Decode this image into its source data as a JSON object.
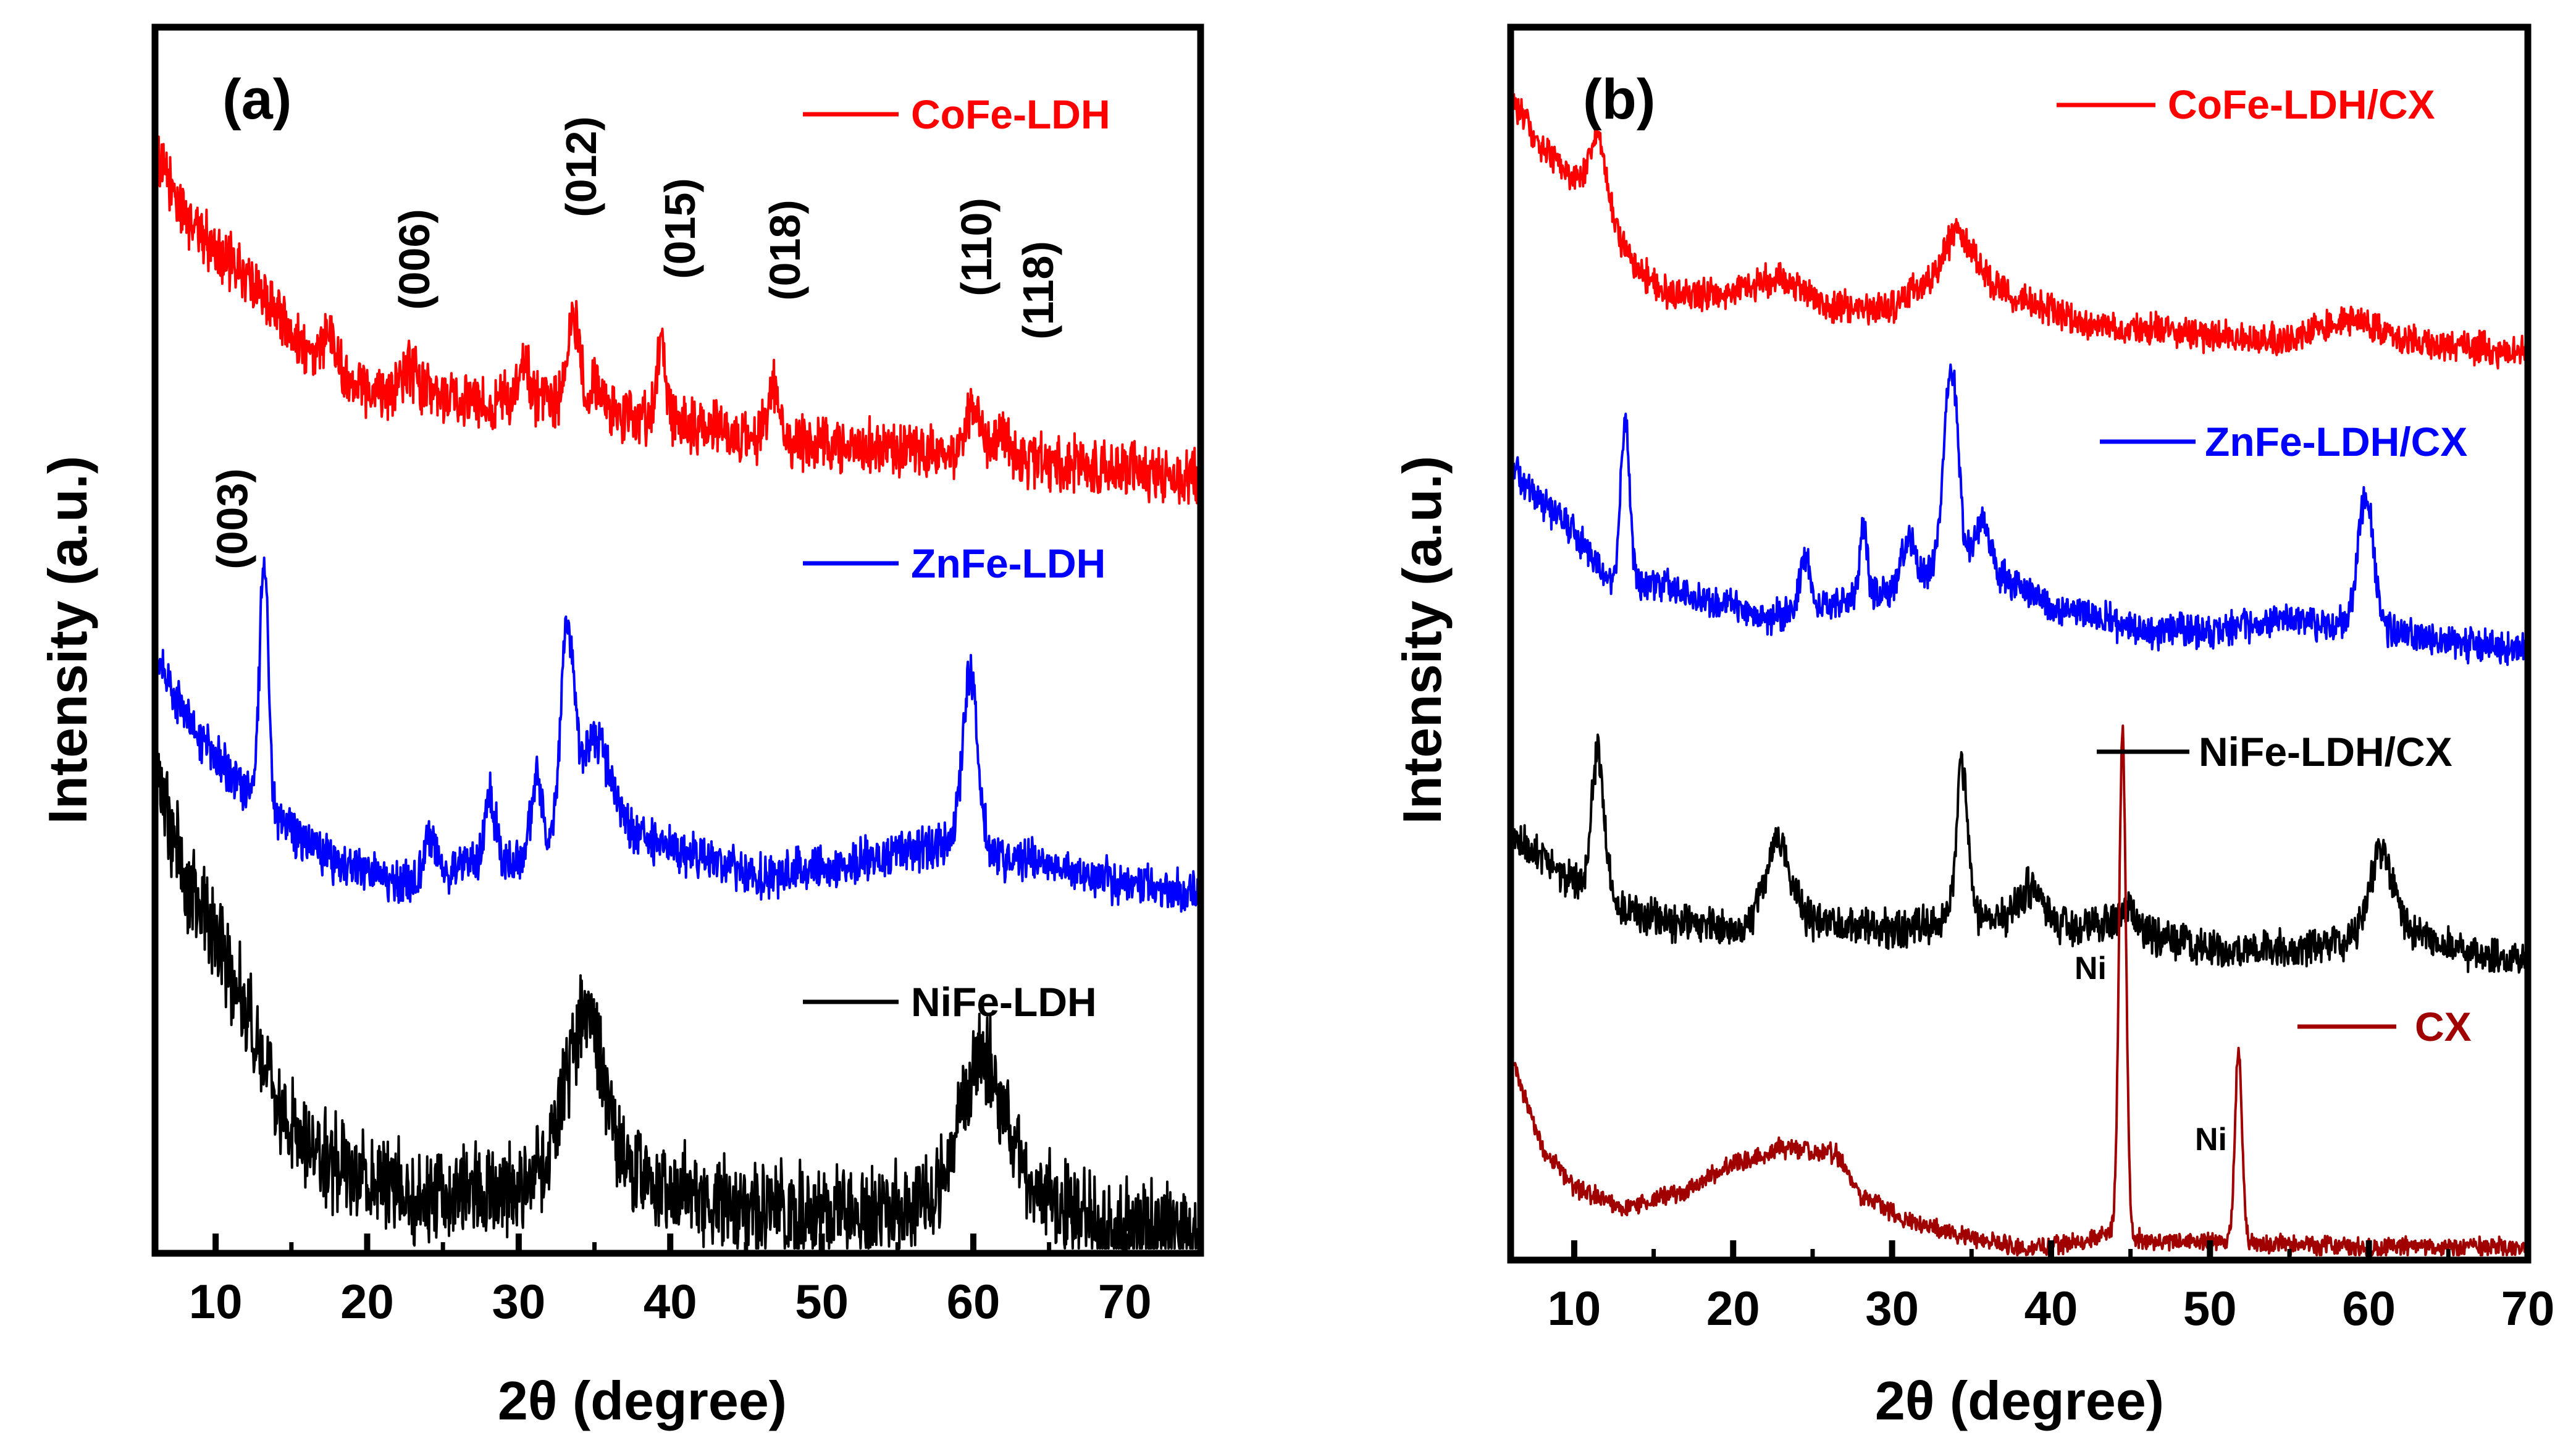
{
  "chart_data": [
    {
      "type": "line",
      "panel_label": "(a)",
      "xlabel": "2θ (degree)",
      "ylabel": "Intensity (a.u.)",
      "xlim": [
        6,
        75
      ],
      "xticks": [
        10,
        20,
        30,
        40,
        50,
        60,
        70
      ],
      "xtick_labels": [
        "10",
        "20",
        "30",
        "40",
        "50",
        "60",
        "70"
      ],
      "y_ticks_shown": false,
      "series": [
        {
          "name": "CoFe-LDH",
          "color": "#ff0000",
          "noise": 0.07,
          "background": [
            [
              6.2,
              0.95
            ],
            [
              8,
              0.8
            ],
            [
              10,
              0.7
            ],
            [
              12,
              0.62
            ],
            [
              14,
              0.52
            ],
            [
              16,
              0.4
            ],
            [
              20,
              0.3
            ],
            [
              25,
              0.27
            ],
            [
              30,
              0.26
            ],
            [
              40,
              0.2
            ],
            [
              48,
              0.14
            ],
            [
              60,
              0.1
            ],
            [
              75,
              0.04
            ]
          ],
          "peaks": [
            [
              17.5,
              0.12,
              0.35
            ],
            [
              22.8,
              0.07,
              0.6
            ],
            [
              30.4,
              0.1,
              0.35
            ],
            [
              33.6,
              0.25,
              0.45
            ],
            [
              35.2,
              0.08,
              0.4
            ],
            [
              39.4,
              0.22,
              0.3
            ],
            [
              46.8,
              0.14,
              0.4
            ],
            [
              60.0,
              0.15,
              0.5
            ],
            [
              61.8,
              0.08,
              0.5
            ]
          ]
        },
        {
          "name": "ZnFe-LDH",
          "color": "#0000ff",
          "noise": 0.06,
          "background": [
            [
              6.2,
              0.75
            ],
            [
              8,
              0.58
            ],
            [
              10,
              0.45
            ],
            [
              12,
              0.35
            ],
            [
              14,
              0.25
            ],
            [
              18,
              0.12
            ],
            [
              22,
              0.06
            ],
            [
              26,
              0.1
            ],
            [
              32,
              0.15
            ],
            [
              36,
              0.25
            ],
            [
              40,
              0.17
            ],
            [
              46,
              0.08
            ],
            [
              52,
              0.12
            ],
            [
              57,
              0.18
            ],
            [
              63,
              0.13
            ],
            [
              70,
              0.06
            ],
            [
              75,
              0.02
            ]
          ],
          "peaks": [
            [
              13.2,
              0.8,
              0.28
            ],
            [
              24.2,
              0.12,
              0.4
            ],
            [
              28.1,
              0.22,
              0.35
            ],
            [
              31.2,
              0.25,
              0.35
            ],
            [
              33.2,
              0.65,
              0.45
            ],
            [
              35.0,
              0.28,
              0.9
            ],
            [
              59.8,
              0.55,
              0.5
            ]
          ]
        },
        {
          "name": "NiFe-LDH",
          "color": "#000000",
          "noise": 0.09,
          "background": [
            [
              6.2,
              1.0
            ],
            [
              8,
              0.78
            ],
            [
              10,
              0.65
            ],
            [
              12,
              0.5
            ],
            [
              14,
              0.3
            ],
            [
              16,
              0.2
            ],
            [
              20,
              0.12
            ],
            [
              25,
              0.09
            ],
            [
              30,
              0.1
            ],
            [
              35,
              0.18
            ],
            [
              40,
              0.1
            ],
            [
              45,
              0.06
            ],
            [
              50,
              0.05
            ],
            [
              55,
              0.05
            ],
            [
              58,
              0.08
            ],
            [
              62,
              0.12
            ],
            [
              66,
              0.05
            ],
            [
              75,
              0.0
            ]
          ],
          "peaks": [
            [
              34.3,
              0.3,
              1.2
            ],
            [
              60.5,
              0.28,
              1.4
            ]
          ]
        }
      ],
      "annotations": [
        {
          "text": "(003)",
          "x": 13.4
        },
        {
          "text": "(006)",
          "x": 23.6
        },
        {
          "text": "(012)",
          "x": 33.8
        },
        {
          "text": "(015)",
          "x": 40.0
        },
        {
          "text": "(018)",
          "x": 47.2
        },
        {
          "text": "(110)",
          "x": 59.8
        },
        {
          "text": "(118)",
          "x": 62.8
        }
      ]
    },
    {
      "type": "line",
      "panel_label": "(b)",
      "xlabel": "2θ (degree)",
      "ylabel": "Intensity (a.u.)",
      "xlim": [
        6,
        70
      ],
      "xticks": [
        10,
        20,
        30,
        40,
        50,
        60,
        70
      ],
      "xtick_labels": [
        "10",
        "20",
        "30",
        "40",
        "50",
        "60",
        "70"
      ],
      "y_ticks_shown": false,
      "series": [
        {
          "name": "CoFe-LDH/CX",
          "color": "#ff0000",
          "noise": 0.05,
          "background": [
            [
              6.2,
              0.95
            ],
            [
              8,
              0.78
            ],
            [
              10,
              0.68
            ],
            [
              12,
              0.52
            ],
            [
              14,
              0.35
            ],
            [
              16,
              0.26
            ],
            [
              20,
              0.27
            ],
            [
              23,
              0.33
            ],
            [
              26,
              0.22
            ],
            [
              30,
              0.22
            ],
            [
              34,
              0.38
            ],
            [
              37,
              0.28
            ],
            [
              42,
              0.15
            ],
            [
              50,
              0.12
            ],
            [
              55,
              0.1
            ],
            [
              59,
              0.18
            ],
            [
              62,
              0.1
            ],
            [
              70,
              0.05
            ]
          ],
          "peaks": [
            [
              11.5,
              0.25,
              0.6
            ],
            [
              34.2,
              0.12,
              0.8
            ]
          ]
        },
        {
          "name": "ZnFe-LDH/CX",
          "color": "#0000ff",
          "noise": 0.055,
          "background": [
            [
              6.2,
              0.7
            ],
            [
              8,
              0.58
            ],
            [
              10,
              0.48
            ],
            [
              12,
              0.3
            ],
            [
              15,
              0.28
            ],
            [
              18,
              0.22
            ],
            [
              22,
              0.15
            ],
            [
              26,
              0.2
            ],
            [
              30,
              0.25
            ],
            [
              34,
              0.35
            ],
            [
              37,
              0.3
            ],
            [
              40,
              0.2
            ],
            [
              46,
              0.1
            ],
            [
              50,
              0.1
            ],
            [
              55,
              0.15
            ],
            [
              58,
              0.12
            ],
            [
              63,
              0.08
            ],
            [
              70,
              0.02
            ]
          ],
          "peaks": [
            [
              13.2,
              0.6,
              0.28
            ],
            [
              24.5,
              0.2,
              0.3
            ],
            [
              28.2,
              0.25,
              0.25
            ],
            [
              31.0,
              0.18,
              0.4
            ],
            [
              33.7,
              0.75,
              0.45
            ],
            [
              35.7,
              0.2,
              0.5
            ],
            [
              59.8,
              0.5,
              0.5
            ]
          ]
        },
        {
          "name": "NiFe-LDH/CX",
          "color": "#000000",
          "noise": 0.06,
          "background": [
            [
              6.2,
              0.45
            ],
            [
              8,
              0.38
            ],
            [
              10,
              0.3
            ],
            [
              13,
              0.2
            ],
            [
              16,
              0.15
            ],
            [
              20,
              0.12
            ],
            [
              25,
              0.15
            ],
            [
              30,
              0.12
            ],
            [
              33,
              0.15
            ],
            [
              36,
              0.18
            ],
            [
              40,
              0.15
            ],
            [
              45,
              0.12
            ],
            [
              50,
              0.05
            ],
            [
              55,
              0.05
            ],
            [
              58,
              0.08
            ],
            [
              63,
              0.1
            ],
            [
              66,
              0.05
            ],
            [
              70,
              0.0
            ]
          ],
          "peaks": [
            [
              11.5,
              0.5,
              0.4
            ],
            [
              22.8,
              0.3,
              0.8
            ],
            [
              34.4,
              0.55,
              0.35
            ],
            [
              38.8,
              0.12,
              0.6
            ],
            [
              44.8,
              0.08,
              0.6
            ],
            [
              60.8,
              0.3,
              0.8
            ]
          ]
        },
        {
          "name": "CX",
          "color": "#a00000",
          "noise": 0.025,
          "background": [
            [
              6.2,
              0.55
            ],
            [
              8,
              0.3
            ],
            [
              10,
              0.18
            ],
            [
              13,
              0.12
            ],
            [
              17,
              0.17
            ],
            [
              20,
              0.25
            ],
            [
              23,
              0.3
            ],
            [
              26.5,
              0.28
            ],
            [
              28,
              0.16
            ],
            [
              31,
              0.08
            ],
            [
              34,
              0.04
            ],
            [
              38,
              0.0
            ],
            [
              42,
              0.02
            ],
            [
              44,
              0.05
            ],
            [
              46,
              0.02
            ],
            [
              50,
              0.02
            ],
            [
              55,
              0.01
            ],
            [
              60,
              0.0
            ],
            [
              70,
              0.0
            ]
          ],
          "peaks": [
            [
              44.5,
              1.5,
              0.22
            ],
            [
              51.8,
              0.58,
              0.22
            ]
          ]
        }
      ],
      "annotations": [
        {
          "text": "Ni",
          "x": 44.5
        },
        {
          "text": "Ni",
          "x": 51.8
        }
      ]
    }
  ]
}
